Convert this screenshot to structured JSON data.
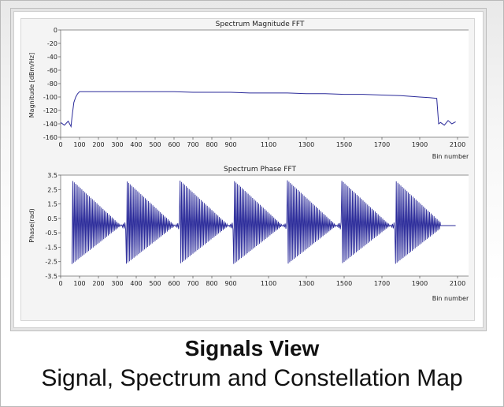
{
  "caption": {
    "title": "Signals View",
    "subtitle": "Signal, Spectrum and Constellation Map"
  },
  "colors": {
    "trace": "#2b2b9a",
    "background": "#ffffff"
  },
  "chart_data": [
    {
      "type": "line",
      "title": "Spectrum Magnitude FFT",
      "xlabel": "Bin number",
      "ylabel": "Magnitude [dBm/Hz]",
      "xlim": [
        0,
        2200
      ],
      "ylim": [
        -160,
        0
      ],
      "x_ticks": [
        0,
        100,
        200,
        300,
        400,
        500,
        600,
        700,
        800,
        900,
        1100,
        1300,
        1500,
        1700,
        1900,
        2100
      ],
      "y_ticks": [
        0,
        -20,
        -40,
        -60,
        -80,
        -100,
        -120,
        -140,
        -160
      ],
      "grid": false,
      "series": [
        {
          "x": [
            0,
            20,
            40,
            55,
            60,
            70,
            80,
            90,
            100,
            200,
            300,
            400,
            500,
            600,
            700,
            800,
            900,
            1000,
            1100,
            1200,
            1300,
            1400,
            1500,
            1600,
            1700,
            1800,
            1900,
            1950,
            1990,
            2000,
            2010,
            2030,
            2050,
            2070,
            2090
          ],
          "y": [
            -138,
            -142,
            -136,
            -144,
            -130,
            -108,
            -100,
            -95,
            -92,
            -92,
            -92,
            -92,
            -92,
            -92,
            -93,
            -93,
            -93,
            -94,
            -94,
            -94,
            -95,
            -95,
            -96,
            -96,
            -97,
            -98,
            -100,
            -101,
            -102,
            -140,
            -138,
            -142,
            -135,
            -140,
            -137
          ]
        }
      ]
    },
    {
      "type": "line",
      "title": "Spectrum Phase FFT",
      "xlabel": "Bin number",
      "ylabel": "Phase(rad)",
      "xlim": [
        0,
        2200
      ],
      "ylim": [
        -3.5,
        3.5
      ],
      "x_ticks": [
        0,
        100,
        200,
        300,
        400,
        500,
        600,
        700,
        800,
        900,
        1100,
        1300,
        1500,
        1700,
        1900,
        2100
      ],
      "y_ticks": [
        3.5,
        2.5,
        1.5,
        0.5,
        -0.5,
        -1.5,
        -2.5,
        -3.5
      ],
      "grid": false,
      "series": [
        {
          "x_start": 60,
          "x_end": 2010,
          "wrap_period_bins": 285,
          "range": [
            -3.14,
            3.14
          ],
          "flat_after": [
            2010,
            2090
          ],
          "flat_value": 0
        }
      ]
    }
  ]
}
